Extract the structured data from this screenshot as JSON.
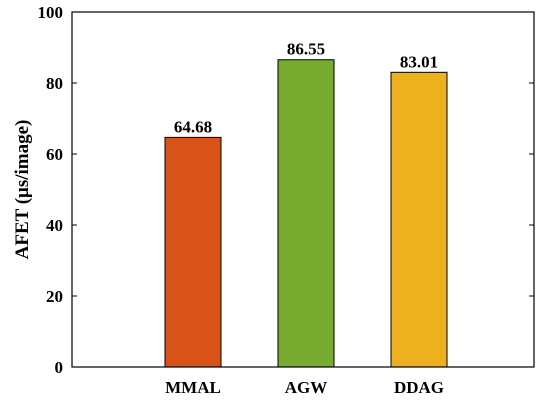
{
  "chart_data": {
    "type": "bar",
    "title": "",
    "xlabel": "",
    "ylabel": "AFET (μs/image)",
    "categories": [
      "MMAL",
      "AGW",
      "DDAG"
    ],
    "values": [
      64.68,
      86.55,
      83.01
    ],
    "value_labels": [
      "64.68",
      "86.55",
      "83.01"
    ],
    "colors": [
      "#d95319",
      "#77ac30",
      "#edb120"
    ],
    "ylim": [
      0,
      100
    ],
    "yticks": [
      0,
      20,
      40,
      60,
      80,
      100
    ],
    "ytick_labels": [
      "0",
      "20",
      "40",
      "60",
      "80",
      "100"
    ],
    "grid": false,
    "legend": "none"
  }
}
